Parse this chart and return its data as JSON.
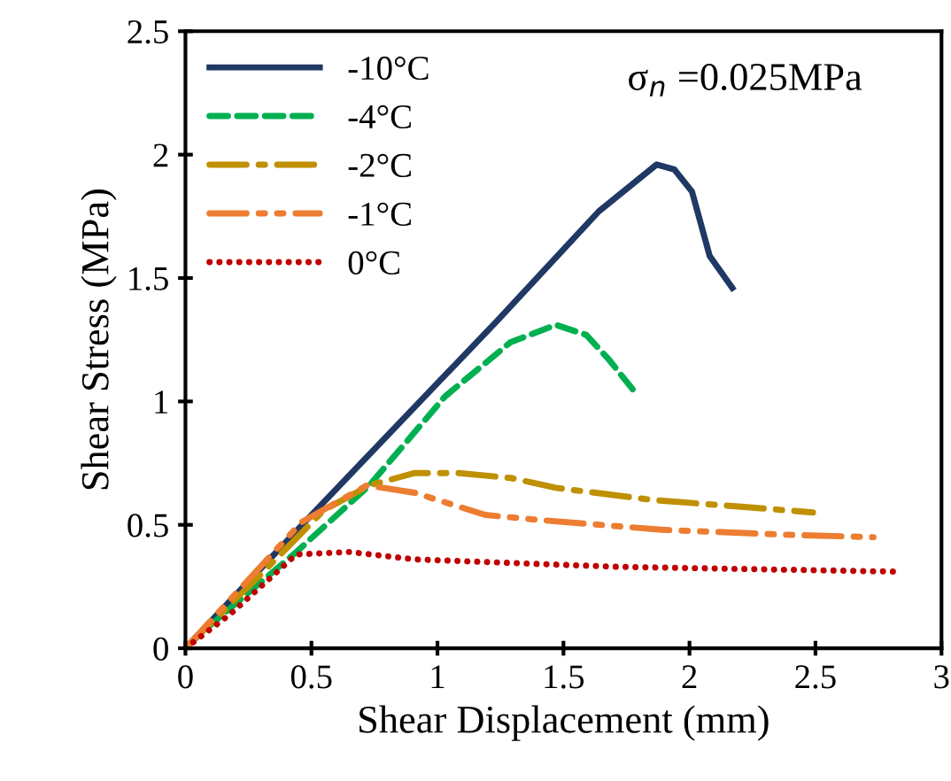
{
  "chart_data": {
    "type": "line",
    "xlabel": "Shear Displacement (mm)",
    "ylabel": "Shear Stress (MPa)",
    "annotations": [
      "σ$_{n}$ =0.025MPa"
    ],
    "xlim": [
      0,
      3
    ],
    "xticks": [
      0,
      0.5,
      1,
      1.5,
      2,
      2.5,
      3
    ],
    "ylim": [
      0,
      2.5
    ],
    "yticks": [
      0,
      0.5,
      1,
      1.5,
      2,
      2.5
    ],
    "grid": false,
    "legend": "top left",
    "marker": "none",
    "series": [
      {
        "name": "-10°C",
        "color": "#203864",
        "line_style": "solid",
        "x": [
          0,
          0.5,
          1.24,
          1.64,
          1.87,
          1.94,
          2.01,
          2.08,
          2.17
        ],
        "values": [
          0,
          0.54,
          1.33,
          1.77,
          1.96,
          1.94,
          1.85,
          1.59,
          1.46
        ]
      },
      {
        "name": "-4°C",
        "color": "#00b050",
        "line_style": "dashed",
        "x": [
          0,
          0.06,
          0.44,
          0.73,
          1.03,
          1.29,
          1.47,
          1.59,
          1.68,
          1.79
        ],
        "values": [
          0,
          0.06,
          0.39,
          0.66,
          1.02,
          1.24,
          1.31,
          1.27,
          1.17,
          1.03
        ]
      },
      {
        "name": "-2°C",
        "color": "#bf9000",
        "line_style": "dashdot",
        "x": [
          0,
          0.3,
          0.55,
          0.73,
          0.91,
          1.08,
          1.29,
          1.47,
          1.86,
          2.25,
          2.49
        ],
        "values": [
          0,
          0.3,
          0.56,
          0.66,
          0.71,
          0.71,
          0.69,
          0.65,
          0.6,
          0.57,
          0.55
        ]
      },
      {
        "name": "-1°C",
        "color": "#ed7d31",
        "line_style": "dashdotdot",
        "x": [
          0,
          0.46,
          0.72,
          0.91,
          1.19,
          1.4,
          1.89,
          2.38,
          2.73
        ],
        "values": [
          0,
          0.51,
          0.66,
          0.63,
          0.54,
          0.52,
          0.48,
          0.46,
          0.45
        ]
      },
      {
        "name": "0°C",
        "color": "#c00000",
        "line_style": "dotted",
        "x": [
          0,
          0.18,
          0.44,
          0.65,
          0.91,
          1.71,
          2.84
        ],
        "values": [
          0,
          0.14,
          0.38,
          0.39,
          0.36,
          0.33,
          0.31
        ]
      }
    ]
  }
}
